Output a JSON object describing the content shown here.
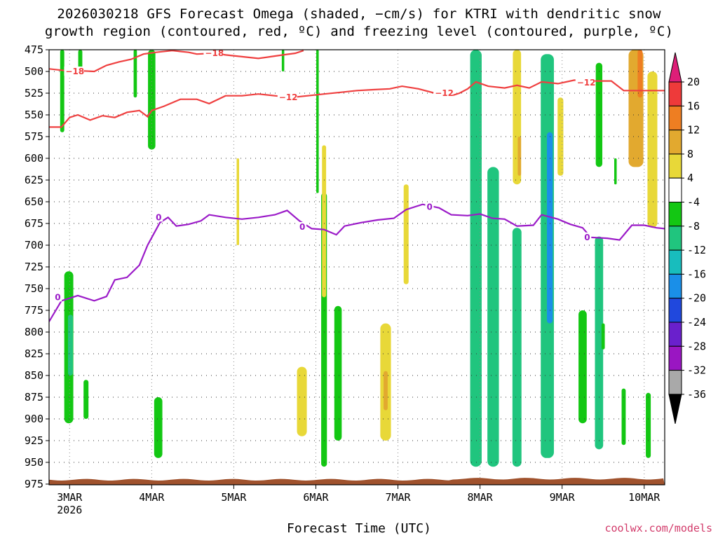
{
  "title_line1": "2026030218 GFS Forecast Omega (shaded, −cm/s) for KTRI with dendritic snow",
  "title_line2": "growth region (contoured, red, ºC) and freezing level (contoured, purple, ºC)",
  "xlabel": "Forecast Time (UTC)",
  "credit": "coolwx.com/models",
  "colors": {
    "isotherm": "#ef4040",
    "freezing_level": "#9b1bc8",
    "ground": "#a0522d"
  },
  "chart_data": {
    "type": "heatmap",
    "y_axis": {
      "label": "",
      "unit": "hPa",
      "inverted": true,
      "ticks": [
        475,
        500,
        525,
        550,
        575,
        600,
        625,
        650,
        675,
        700,
        725,
        750,
        775,
        800,
        825,
        850,
        875,
        900,
        925,
        950,
        975
      ]
    },
    "x_axis": {
      "ticks": [
        {
          "day": 3,
          "label": "3MAR",
          "sub": "2026"
        },
        {
          "day": 4,
          "label": "4MAR",
          "sub": ""
        },
        {
          "day": 5,
          "label": "5MAR",
          "sub": ""
        },
        {
          "day": 6,
          "label": "6MAR",
          "sub": ""
        },
        {
          "day": 7,
          "label": "7MAR",
          "sub": ""
        },
        {
          "day": 8,
          "label": "8MAR",
          "sub": ""
        },
        {
          "day": 9,
          "label": "9MAR",
          "sub": ""
        },
        {
          "day": 10,
          "label": "10MAR",
          "sub": ""
        }
      ],
      "range_days": [
        2.75,
        10.25
      ]
    },
    "grid": "dotted",
    "colorbar": {
      "labels": [
        "20",
        "16",
        "12",
        "8",
        "4",
        "-4",
        "-8",
        "-12",
        "-16",
        "-20",
        "-24",
        "-28",
        "-32",
        "-36"
      ],
      "bins": [
        {
          "min": 20,
          "color": "#dd1e78"
        },
        {
          "min": 16,
          "max": 20,
          "color": "#ee3a3a"
        },
        {
          "min": 12,
          "max": 16,
          "color": "#ee7e22"
        },
        {
          "min": 8,
          "max": 12,
          "color": "#e2a92f"
        },
        {
          "min": 4,
          "max": 8,
          "color": "#e8d838"
        },
        {
          "min": -4,
          "max": 4,
          "color": "#ffffff"
        },
        {
          "min": -8,
          "max": -4,
          "color": "#13c713"
        },
        {
          "min": -12,
          "max": -8,
          "color": "#20c57e"
        },
        {
          "min": -16,
          "max": -12,
          "color": "#18bdbd"
        },
        {
          "min": -20,
          "max": -16,
          "color": "#1a8fe8"
        },
        {
          "min": -24,
          "max": -20,
          "color": "#2048dd"
        },
        {
          "min": -28,
          "max": -24,
          "color": "#6a20cc"
        },
        {
          "min": -32,
          "max": -28,
          "color": "#9a16c2"
        },
        {
          "min": -36,
          "max": -32,
          "color": "#a9a9a9"
        },
        {
          "max": -36,
          "color": "#000000"
        }
      ]
    },
    "isotherms": [
      {
        "name": "-18",
        "color": "#ef4040",
        "labels": [
          {
            "day": 2.95,
            "hPa": 500
          },
          {
            "day": 4.65,
            "hPa": 479
          }
        ],
        "points": [
          [
            2.75,
            497
          ],
          [
            2.95,
            499
          ],
          [
            3.1,
            499
          ],
          [
            3.3,
            500
          ],
          [
            3.45,
            493
          ],
          [
            3.6,
            489
          ],
          [
            3.75,
            486
          ],
          [
            3.9,
            480
          ],
          [
            4.05,
            478
          ],
          [
            4.25,
            476
          ],
          [
            4.45,
            478
          ],
          [
            4.55,
            480
          ],
          [
            4.75,
            479
          ],
          [
            4.9,
            481
          ],
          [
            5.1,
            483
          ],
          [
            5.3,
            485
          ],
          [
            5.45,
            483
          ],
          [
            5.6,
            481
          ],
          [
            5.75,
            479
          ],
          [
            5.85,
            476
          ]
        ]
      },
      {
        "name": "-12",
        "color": "#ef4040",
        "labels": [
          {
            "day": 5.55,
            "hPa": 530
          },
          {
            "day": 7.45,
            "hPa": 525
          },
          {
            "day": 9.18,
            "hPa": 513
          }
        ],
        "points": [
          [
            2.75,
            564
          ],
          [
            2.9,
            564
          ],
          [
            3.0,
            553
          ],
          [
            3.1,
            550
          ],
          [
            3.25,
            556
          ],
          [
            3.4,
            551
          ],
          [
            3.55,
            553
          ],
          [
            3.7,
            547
          ],
          [
            3.85,
            545
          ],
          [
            3.95,
            552
          ],
          [
            4.0,
            545
          ],
          [
            4.15,
            540
          ],
          [
            4.35,
            532
          ],
          [
            4.55,
            532
          ],
          [
            4.7,
            537
          ],
          [
            4.9,
            528
          ],
          [
            5.1,
            528
          ],
          [
            5.3,
            526
          ],
          [
            5.5,
            528
          ],
          [
            5.7,
            530
          ],
          [
            5.9,
            528
          ],
          [
            6.1,
            526
          ],
          [
            6.3,
            524
          ],
          [
            6.5,
            522
          ],
          [
            6.7,
            521
          ],
          [
            6.9,
            520
          ],
          [
            7.05,
            517
          ],
          [
            7.25,
            520
          ],
          [
            7.45,
            525
          ],
          [
            7.6,
            523
          ],
          [
            7.65,
            528
          ],
          [
            7.75,
            525
          ],
          [
            7.85,
            520
          ],
          [
            7.95,
            512
          ],
          [
            8.1,
            517
          ],
          [
            8.3,
            519
          ],
          [
            8.45,
            516
          ],
          [
            8.6,
            519
          ],
          [
            8.75,
            512
          ],
          [
            8.95,
            514
          ],
          [
            9.15,
            510
          ],
          [
            9.3,
            511
          ],
          [
            9.45,
            511
          ],
          [
            9.6,
            511
          ],
          [
            9.75,
            522
          ],
          [
            9.95,
            522
          ],
          [
            10.1,
            522
          ],
          [
            10.25,
            522
          ]
        ]
      }
    ],
    "freezing_level": {
      "name": "0",
      "color": "#9b1bc8",
      "labels": [
        {
          "day": 2.82,
          "hPa": 760
        },
        {
          "day": 4.05,
          "hPa": 668
        },
        {
          "day": 5.8,
          "hPa": 679
        },
        {
          "day": 7.35,
          "hPa": 656
        },
        {
          "day": 9.27,
          "hPa": 691
        }
      ],
      "points": [
        [
          2.75,
          788
        ],
        [
          2.9,
          764
        ],
        [
          3.1,
          758
        ],
        [
          3.3,
          764
        ],
        [
          3.45,
          759
        ],
        [
          3.55,
          740
        ],
        [
          3.7,
          737
        ],
        [
          3.85,
          723
        ],
        [
          3.95,
          700
        ],
        [
          4.1,
          674
        ],
        [
          4.2,
          668
        ],
        [
          4.3,
          678
        ],
        [
          4.45,
          676
        ],
        [
          4.6,
          672
        ],
        [
          4.7,
          665
        ],
        [
          4.9,
          668
        ],
        [
          5.1,
          670
        ],
        [
          5.3,
          668
        ],
        [
          5.5,
          665
        ],
        [
          5.65,
          660
        ],
        [
          5.8,
          672
        ],
        [
          5.95,
          681
        ],
        [
          6.1,
          682
        ],
        [
          6.25,
          688
        ],
        [
          6.35,
          678
        ],
        [
          6.55,
          674
        ],
        [
          6.75,
          671
        ],
        [
          6.95,
          669
        ],
        [
          7.1,
          659
        ],
        [
          7.3,
          653
        ],
        [
          7.5,
          657
        ],
        [
          7.65,
          665
        ],
        [
          7.85,
          666
        ],
        [
          8.0,
          664
        ],
        [
          8.15,
          669
        ],
        [
          8.3,
          670
        ],
        [
          8.45,
          678
        ],
        [
          8.65,
          677
        ],
        [
          8.75,
          665
        ],
        [
          8.95,
          670
        ],
        [
          9.1,
          676
        ],
        [
          9.25,
          680
        ],
        [
          9.35,
          691
        ],
        [
          9.55,
          692
        ],
        [
          9.7,
          694
        ],
        [
          9.85,
          677
        ],
        [
          10.0,
          677
        ],
        [
          10.15,
          680
        ],
        [
          10.25,
          681
        ]
      ]
    },
    "omega_features": [
      {
        "day": 2.99,
        "hPa_top": 730,
        "hPa_bottom": 905,
        "width": 0.11,
        "value": -8
      },
      {
        "day": 3.2,
        "hPa_top": 855,
        "hPa_bottom": 900,
        "width": 0.06,
        "value": -6
      },
      {
        "day": 3.01,
        "hPa_top": 780,
        "hPa_bottom": 850,
        "width": 0.06,
        "value": -11
      },
      {
        "day": 2.91,
        "hPa_top": 475,
        "hPa_bottom": 570,
        "width": 0.05,
        "value": -6
      },
      {
        "day": 3.13,
        "hPa_top": 475,
        "hPa_bottom": 505,
        "width": 0.05,
        "value": -6
      },
      {
        "day": 3.8,
        "hPa_top": 475,
        "hPa_bottom": 530,
        "width": 0.04,
        "value": -6
      },
      {
        "day": 4.0,
        "hPa_top": 475,
        "hPa_bottom": 590,
        "width": 0.09,
        "value": -7
      },
      {
        "day": 4.08,
        "hPa_top": 875,
        "hPa_bottom": 945,
        "width": 0.1,
        "value": -7
      },
      {
        "day": 5.05,
        "hPa_top": 600,
        "hPa_bottom": 700,
        "width": 0.03,
        "value": 5
      },
      {
        "day": 6.1,
        "hPa_top": 640,
        "hPa_bottom": 955,
        "width": 0.07,
        "value": -7
      },
      {
        "day": 6.27,
        "hPa_top": 770,
        "hPa_bottom": 925,
        "width": 0.09,
        "value": -8
      },
      {
        "day": 6.02,
        "hPa_top": 475,
        "hPa_bottom": 640,
        "width": 0.03,
        "value": -6
      },
      {
        "day": 6.1,
        "hPa_top": 585,
        "hPa_bottom": 760,
        "width": 0.05,
        "value": 6
      },
      {
        "day": 5.83,
        "hPa_top": 840,
        "hPa_bottom": 920,
        "width": 0.12,
        "value": 6
      },
      {
        "day": 6.85,
        "hPa_top": 790,
        "hPa_bottom": 925,
        "width": 0.13,
        "value": 6
      },
      {
        "day": 6.85,
        "hPa_top": 845,
        "hPa_bottom": 890,
        "width": 0.05,
        "value": 9
      },
      {
        "day": 7.1,
        "hPa_top": 630,
        "hPa_bottom": 745,
        "width": 0.06,
        "value": 5
      },
      {
        "day": 7.95,
        "hPa_top": 475,
        "hPa_bottom": 955,
        "width": 0.14,
        "value": -9
      },
      {
        "day": 8.16,
        "hPa_top": 610,
        "hPa_bottom": 955,
        "width": 0.14,
        "value": -9
      },
      {
        "day": 8.45,
        "hPa_top": 680,
        "hPa_bottom": 955,
        "width": 0.11,
        "value": -9
      },
      {
        "day": 8.82,
        "hPa_top": 480,
        "hPa_bottom": 945,
        "width": 0.16,
        "value": -12
      },
      {
        "day": 8.85,
        "hPa_top": 570,
        "hPa_bottom": 790,
        "width": 0.07,
        "value": -17
      },
      {
        "day": 9.45,
        "hPa_top": 690,
        "hPa_bottom": 935,
        "width": 0.1,
        "value": -10
      },
      {
        "day": 9.25,
        "hPa_top": 775,
        "hPa_bottom": 905,
        "width": 0.1,
        "value": -7
      },
      {
        "day": 9.45,
        "hPa_top": 490,
        "hPa_bottom": 610,
        "width": 0.08,
        "value": -7
      },
      {
        "day": 8.45,
        "hPa_top": 475,
        "hPa_bottom": 630,
        "width": 0.1,
        "value": 5
      },
      {
        "day": 8.48,
        "hPa_top": 575,
        "hPa_bottom": 620,
        "width": 0.04,
        "value": 9
      },
      {
        "day": 8.98,
        "hPa_top": 530,
        "hPa_bottom": 620,
        "width": 0.07,
        "value": 6
      },
      {
        "day": 9.9,
        "hPa_top": 475,
        "hPa_bottom": 610,
        "width": 0.18,
        "value": 8
      },
      {
        "day": 9.95,
        "hPa_top": 475,
        "hPa_bottom": 530,
        "width": 0.06,
        "value": 13
      },
      {
        "day": 10.1,
        "hPa_top": 500,
        "hPa_bottom": 680,
        "width": 0.12,
        "value": 6
      },
      {
        "day": 9.65,
        "hPa_top": 600,
        "hPa_bottom": 630,
        "width": 0.03,
        "value": -6
      },
      {
        "day": 10.05,
        "hPa_top": 870,
        "hPa_bottom": 945,
        "width": 0.06,
        "value": -7
      },
      {
        "day": 9.75,
        "hPa_top": 865,
        "hPa_bottom": 930,
        "width": 0.05,
        "value": -6
      },
      {
        "day": 9.5,
        "hPa_top": 790,
        "hPa_bottom": 820,
        "width": 0.04,
        "value": -6
      },
      {
        "day": 5.6,
        "hPa_top": 475,
        "hPa_bottom": 500,
        "width": 0.03,
        "value": -6
      }
    ],
    "ground": {
      "hPa": 970,
      "color": "#a0522d"
    }
  }
}
